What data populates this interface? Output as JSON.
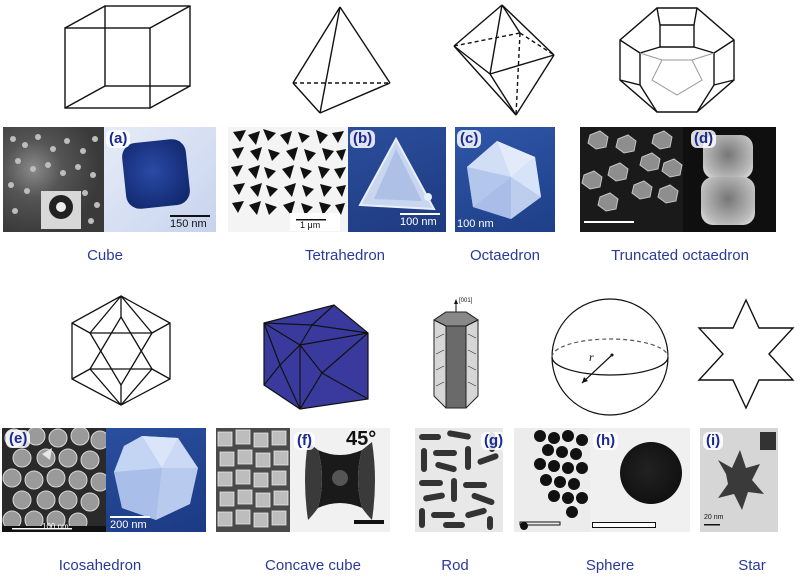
{
  "shapes": [
    {
      "caption": "Cube",
      "label": "(a)",
      "scale": "150 nm",
      "inset_scale": ""
    },
    {
      "caption": "Tetrahedron",
      "label": "(b)",
      "scale": "100 nm",
      "inset_scale": "1 μm"
    },
    {
      "caption": "Octaedron",
      "label": "(c)",
      "scale": "100 nm"
    },
    {
      "caption": "Truncated octaedron",
      "label": "(d)"
    },
    {
      "caption": "Icosahedron",
      "label": "(e)",
      "scale": "200 nm",
      "inset_scale": "100 nm"
    },
    {
      "caption": "Concave cube",
      "label": "(f)",
      "angle": "45°"
    },
    {
      "caption": "Rod",
      "label": "(g)",
      "axis_label": "[001]"
    },
    {
      "caption": "Sphere",
      "label": "(h)",
      "radius_label": "r"
    },
    {
      "caption": "Star",
      "label": "(i)",
      "scale": "20 nm"
    }
  ],
  "colors": {
    "caption": "#2a3a9a",
    "label": "#1a2a90",
    "concave_cube": "#3a3a9e",
    "tem_blue": "#1c3f9c"
  }
}
